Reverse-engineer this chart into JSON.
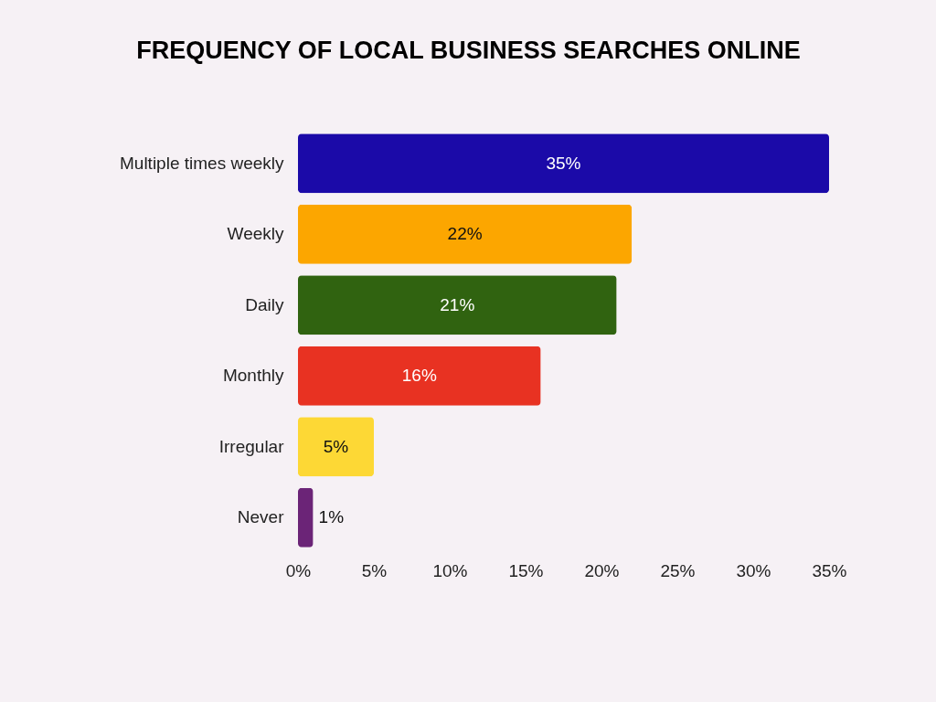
{
  "chart_data": {
    "type": "bar",
    "orientation": "horizontal",
    "title": "FREQUENCY OF LOCAL BUSINESS SEARCHES ONLINE",
    "categories": [
      "Multiple times weekly",
      "Weekly",
      "Daily",
      "Monthly",
      "Irregular",
      "Never"
    ],
    "values": [
      35,
      22,
      21,
      16,
      5,
      1
    ],
    "colors": [
      "#1b0aa8",
      "#fca600",
      "#306310",
      "#e83222",
      "#fdd835",
      "#6b2477"
    ],
    "value_labels": [
      "35%",
      "22%",
      "21%",
      "16%",
      "5%",
      "1%"
    ],
    "xlim": [
      0,
      35
    ],
    "xticks": [
      {
        "value": 0,
        "label": "0%"
      },
      {
        "value": 5,
        "label": "5%"
      },
      {
        "value": 10,
        "label": "10%"
      },
      {
        "value": 15,
        "label": "15%"
      },
      {
        "value": 20,
        "label": "20%"
      },
      {
        "value": 25,
        "label": "25%"
      },
      {
        "value": 30,
        "label": "30%"
      },
      {
        "value": 35,
        "label": "35%"
      }
    ],
    "grid": false,
    "legend": false
  }
}
